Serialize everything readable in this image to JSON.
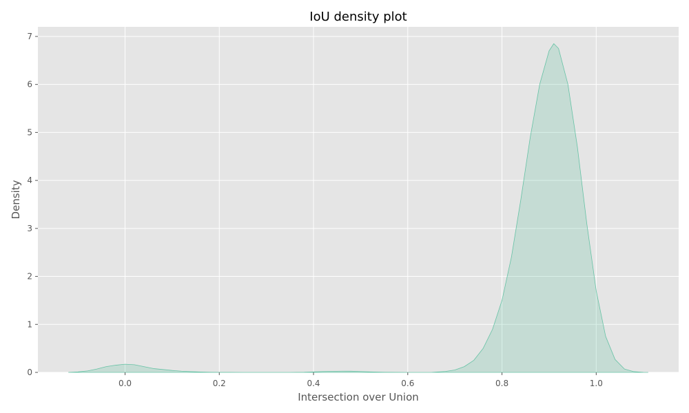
{
  "chart_data": {
    "type": "area",
    "title": "IoU density plot",
    "xlabel": "Intersection over Union",
    "ylabel": "Density",
    "xlim": [
      -0.185,
      1.175
    ],
    "ylim": [
      0,
      7.2
    ],
    "x_ticks": [
      0.0,
      0.2,
      0.4,
      0.6,
      0.8,
      1.0
    ],
    "x_tick_labels": [
      "0.0",
      "0.2",
      "0.4",
      "0.6",
      "0.8",
      "1.0"
    ],
    "y_ticks": [
      0,
      1,
      2,
      3,
      4,
      5,
      6,
      7
    ],
    "y_tick_labels": [
      "0",
      "1",
      "2",
      "3",
      "4",
      "5",
      "6",
      "7"
    ],
    "grid": true,
    "colors": {
      "fill": "#66c2a5",
      "plot_background": "#e5e5e5",
      "grid": "#ffffff"
    },
    "series": [
      {
        "x": [
          -0.12,
          -0.1,
          -0.08,
          -0.06,
          -0.04,
          -0.02,
          0.0,
          0.02,
          0.04,
          0.06,
          0.08,
          0.1,
          0.12,
          0.14,
          0.16,
          0.18,
          0.2,
          0.22,
          0.25,
          0.3,
          0.35,
          0.38,
          0.4,
          0.42,
          0.44,
          0.46,
          0.48,
          0.5,
          0.52,
          0.55,
          0.6,
          0.65,
          0.68,
          0.7,
          0.72,
          0.74,
          0.76,
          0.78,
          0.8,
          0.82,
          0.84,
          0.86,
          0.88,
          0.9,
          0.91,
          0.92,
          0.94,
          0.96,
          0.98,
          1.0,
          1.02,
          1.04,
          1.06,
          1.08,
          1.1,
          1.11
        ],
        "y": [
          0.0,
          0.01,
          0.03,
          0.07,
          0.12,
          0.15,
          0.17,
          0.16,
          0.12,
          0.08,
          0.06,
          0.04,
          0.025,
          0.015,
          0.008,
          0.004,
          0.002,
          0.001,
          0.0,
          0.0,
          0.0,
          0.003,
          0.01,
          0.018,
          0.022,
          0.025,
          0.024,
          0.018,
          0.01,
          0.003,
          0.0,
          0.0,
          0.02,
          0.05,
          0.12,
          0.25,
          0.5,
          0.9,
          1.5,
          2.4,
          3.6,
          4.9,
          6.0,
          6.7,
          6.85,
          6.75,
          6.0,
          4.7,
          3.1,
          1.7,
          0.75,
          0.27,
          0.07,
          0.015,
          0.002,
          0.0
        ]
      }
    ]
  }
}
